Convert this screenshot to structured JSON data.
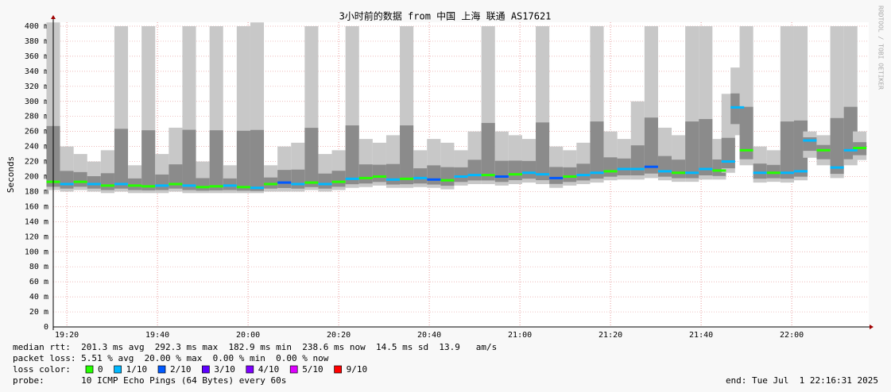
{
  "chart_data": {
    "type": "smoke",
    "title": "3小时前的数据 from 中国 上海 联通 AS17621",
    "ylabel": "Seconds",
    "side_text": "RRDTOOL / TOBI OETIKER",
    "grid": true,
    "xlim": [
      "19:17",
      "22:17"
    ],
    "xticks": [
      "19:20",
      "19:40",
      "20:00",
      "20:20",
      "20:40",
      "21:00",
      "21:20",
      "21:40",
      "22:00"
    ],
    "ylim": [
      0,
      0.4
    ],
    "yticks": [
      0,
      {
        "value": 0.02,
        "label": "20 m"
      },
      {
        "value": 0.04,
        "label": "40 m"
      },
      {
        "value": 0.06,
        "label": "60 m"
      },
      {
        "value": 0.08,
        "label": "80 m"
      },
      {
        "value": 0.1,
        "label": "100 m"
      },
      {
        "value": 0.12,
        "label": "120 m"
      },
      {
        "value": 0.14,
        "label": "140 m"
      },
      {
        "value": 0.16,
        "label": "160 m"
      },
      {
        "value": 0.18,
        "label": "180 m"
      },
      {
        "value": 0.2,
        "label": "200 m"
      },
      {
        "value": 0.22,
        "label": "220 m"
      },
      {
        "value": 0.24,
        "label": "240 m"
      },
      {
        "value": 0.26,
        "label": "260 m"
      },
      {
        "value": 0.28,
        "label": "280 m"
      },
      {
        "value": 0.3,
        "label": "300 m"
      },
      {
        "value": 0.32,
        "label": "320 m"
      },
      {
        "value": 0.34,
        "label": "340 m"
      },
      {
        "value": 0.36,
        "label": "360 m"
      },
      {
        "value": 0.38,
        "label": "380 m"
      },
      {
        "value": 0.4,
        "label": "400 m"
      }
    ],
    "x": [
      "19:17",
      "19:20",
      "19:23",
      "19:26",
      "19:29",
      "19:32",
      "19:35",
      "19:38",
      "19:41",
      "19:44",
      "19:47",
      "19:50",
      "19:53",
      "19:56",
      "19:59",
      "20:02",
      "20:05",
      "20:08",
      "20:11",
      "20:14",
      "20:17",
      "20:20",
      "20:23",
      "20:26",
      "20:29",
      "20:32",
      "20:35",
      "20:38",
      "20:41",
      "20:44",
      "20:47",
      "20:50",
      "20:53",
      "20:56",
      "20:59",
      "21:02",
      "21:05",
      "21:08",
      "21:11",
      "21:14",
      "21:17",
      "21:20",
      "21:23",
      "21:26",
      "21:29",
      "21:32",
      "21:35",
      "21:38",
      "21:41",
      "21:44",
      "21:46",
      "21:48",
      "21:50",
      "21:53",
      "21:56",
      "21:59",
      "22:02",
      "22:04",
      "22:07",
      "22:10",
      "22:13",
      "22:15"
    ],
    "median": [
      0.193,
      0.19,
      0.193,
      0.19,
      0.188,
      0.19,
      0.188,
      0.187,
      0.188,
      0.19,
      0.188,
      0.186,
      0.187,
      0.188,
      0.186,
      0.185,
      0.19,
      0.192,
      0.19,
      0.192,
      0.19,
      0.193,
      0.197,
      0.198,
      0.2,
      0.196,
      0.197,
      0.198,
      0.196,
      0.195,
      0.2,
      0.202,
      0.202,
      0.2,
      0.203,
      0.205,
      0.203,
      0.198,
      0.2,
      0.202,
      0.205,
      0.207,
      0.21,
      0.21,
      0.213,
      0.207,
      0.205,
      0.205,
      0.21,
      0.208,
      0.22,
      0.292,
      0.235,
      0.205,
      0.205,
      0.205,
      0.207,
      0.248,
      0.235,
      0.212,
      0.235,
      0.238
    ],
    "loss": [
      0,
      1,
      0,
      1,
      0,
      1,
      0,
      0,
      1,
      0,
      1,
      0,
      0,
      1,
      0,
      1,
      0,
      2,
      1,
      0,
      1,
      0,
      1,
      0,
      0,
      1,
      0,
      1,
      2,
      0,
      1,
      1,
      0,
      2,
      0,
      1,
      1,
      2,
      0,
      1,
      1,
      0,
      1,
      1,
      2,
      1,
      0,
      1,
      1,
      0,
      1,
      1,
      0,
      1,
      0,
      1,
      1,
      1,
      0,
      1,
      1,
      0
    ],
    "smoke_low": [
      0.182,
      0.18,
      0.182,
      0.18,
      0.178,
      0.18,
      0.178,
      0.178,
      0.178,
      0.18,
      0.178,
      0.178,
      0.178,
      0.178,
      0.178,
      0.178,
      0.18,
      0.18,
      0.18,
      0.182,
      0.18,
      0.182,
      0.185,
      0.186,
      0.188,
      0.185,
      0.185,
      0.186,
      0.185,
      0.183,
      0.188,
      0.19,
      0.19,
      0.188,
      0.19,
      0.192,
      0.19,
      0.185,
      0.188,
      0.19,
      0.192,
      0.195,
      0.196,
      0.196,
      0.198,
      0.195,
      0.193,
      0.193,
      0.196,
      0.196,
      0.205,
      0.255,
      0.215,
      0.192,
      0.193,
      0.192,
      0.195,
      0.225,
      0.215,
      0.198,
      0.215,
      0.222
    ],
    "smoke_high": [
      0.405,
      0.24,
      0.23,
      0.22,
      0.235,
      0.4,
      0.215,
      0.4,
      0.23,
      0.265,
      0.4,
      0.22,
      0.4,
      0.215,
      0.4,
      0.405,
      0.215,
      0.24,
      0.245,
      0.4,
      0.23,
      0.235,
      0.4,
      0.25,
      0.245,
      0.255,
      0.4,
      0.235,
      0.25,
      0.245,
      0.235,
      0.26,
      0.4,
      0.26,
      0.255,
      0.25,
      0.4,
      0.24,
      0.235,
      0.245,
      0.4,
      0.26,
      0.25,
      0.3,
      0.4,
      0.265,
      0.255,
      0.4,
      0.4,
      0.25,
      0.31,
      0.345,
      0.4,
      0.24,
      0.235,
      0.4,
      0.4,
      0.26,
      0.255,
      0.4,
      0.4,
      0.26
    ],
    "footer": [
      "median rtt:  201.3 ms avg  292.3 ms max  182.9 ms min  238.6 ms now  14.5 ms sd  13.9   am/s",
      "packet loss: 5.51 % avg  20.00 % max  0.00 % min  0.00 % now"
    ],
    "loss_label": "loss color:",
    "loss_legend": [
      {
        "name": "0",
        "color": "#26ff00"
      },
      {
        "name": "1/10",
        "color": "#00b8ff"
      },
      {
        "name": "2/10",
        "color": "#0059ff"
      },
      {
        "name": "3/10",
        "color": "#5e00ff"
      },
      {
        "name": "4/10",
        "color": "#7e00ff"
      },
      {
        "name": "5/10",
        "color": "#dd00ff"
      },
      {
        "name": "9/10",
        "color": "#ff0000"
      }
    ],
    "probe": "probe:       10 ICMP Echo Pings (64 Bytes) every 60s",
    "end": "end: Tue Jul  1 22:16:31 2025"
  }
}
